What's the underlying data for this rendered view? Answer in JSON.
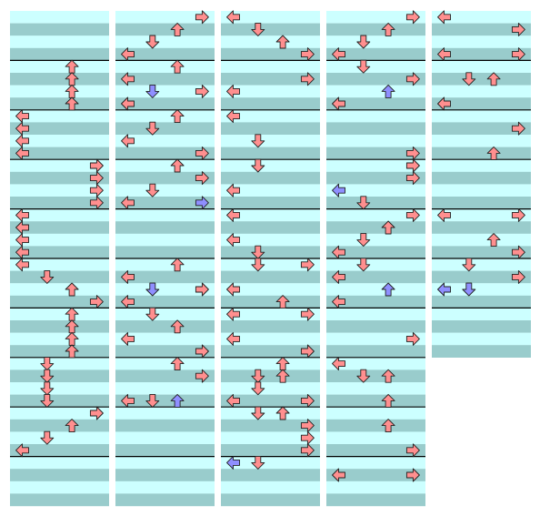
{
  "chart_data": {
    "type": "other",
    "description_kind": "rhythm-step-chart",
    "colors": {
      "row_light": "#ccffff",
      "row_dark": "#99cccc",
      "measure_line": "#000000",
      "arrow_normal": "#ff8f8f",
      "arrow_alt": "#8f8fff",
      "arrow_outline": "#222222"
    },
    "legend": {
      "lanes": [
        "left",
        "down",
        "up",
        "right"
      ],
      "arrow_colors": [
        "normal",
        "alt"
      ]
    },
    "columns": [
      {
        "measures": 10,
        "notes": [
          [
            4,
            "up"
          ],
          [
            5,
            "up"
          ],
          [
            6,
            "up"
          ],
          [
            7,
            "up"
          ],
          [
            8,
            "left"
          ],
          [
            9,
            "left"
          ],
          [
            10,
            "left"
          ],
          [
            11,
            "left"
          ],
          [
            12,
            "right"
          ],
          [
            13,
            "right"
          ],
          [
            14,
            "right"
          ],
          [
            15,
            "right"
          ],
          [
            16,
            "left"
          ],
          [
            17,
            "left"
          ],
          [
            18,
            "left"
          ],
          [
            19,
            "left"
          ],
          [
            20,
            "left"
          ],
          [
            21,
            "down"
          ],
          [
            22,
            "up"
          ],
          [
            23,
            "right"
          ],
          [
            24,
            "up"
          ],
          [
            25,
            "up"
          ],
          [
            26,
            "up"
          ],
          [
            27,
            "up"
          ],
          [
            28,
            "down"
          ],
          [
            29,
            "down"
          ],
          [
            30,
            "down"
          ],
          [
            31,
            "down"
          ],
          [
            32,
            "right"
          ],
          [
            33,
            "up"
          ],
          [
            34,
            "down"
          ],
          [
            35,
            "left"
          ]
        ]
      },
      {
        "measures": 10,
        "notes": [
          [
            0,
            "right"
          ],
          [
            1,
            "up"
          ],
          [
            2,
            "down"
          ],
          [
            3,
            "left"
          ],
          [
            4,
            "up"
          ],
          [
            5,
            "left"
          ],
          [
            6,
            "right"
          ],
          [
            6,
            "down",
            "alt"
          ],
          [
            7,
            "left"
          ],
          [
            8,
            "up"
          ],
          [
            9,
            "down"
          ],
          [
            10,
            "left"
          ],
          [
            11,
            "right"
          ],
          [
            12,
            "up"
          ],
          [
            13,
            "right"
          ],
          [
            14,
            "down"
          ],
          [
            15,
            "right",
            "alt"
          ],
          [
            15,
            "left"
          ],
          [
            20,
            "up"
          ],
          [
            21,
            "left"
          ],
          [
            22,
            "right"
          ],
          [
            22,
            "down",
            "alt"
          ],
          [
            23,
            "left"
          ],
          [
            24,
            "down"
          ],
          [
            25,
            "up"
          ],
          [
            26,
            "left"
          ],
          [
            27,
            "right"
          ],
          [
            28,
            "up"
          ],
          [
            29,
            "right"
          ],
          [
            31,
            "left"
          ],
          [
            31,
            "down"
          ],
          [
            31,
            "up",
            "alt"
          ]
        ]
      },
      {
        "measures": 10,
        "notes": [
          [
            0,
            "left"
          ],
          [
            1,
            "down"
          ],
          [
            2,
            "up"
          ],
          [
            3,
            "right"
          ],
          [
            5,
            "right"
          ],
          [
            6,
            "left"
          ],
          [
            8,
            "left"
          ],
          [
            10,
            "down"
          ],
          [
            12,
            "down"
          ],
          [
            14,
            "left"
          ],
          [
            16,
            "left"
          ],
          [
            18,
            "left"
          ],
          [
            19,
            "down"
          ],
          [
            20,
            "down"
          ],
          [
            20,
            "right"
          ],
          [
            22,
            "left"
          ],
          [
            23,
            "up"
          ],
          [
            24,
            "right"
          ],
          [
            24,
            "left"
          ],
          [
            26,
            "left"
          ],
          [
            27,
            "right"
          ],
          [
            28,
            "up"
          ],
          [
            29,
            "down"
          ],
          [
            29,
            "up"
          ],
          [
            30,
            "down"
          ],
          [
            31,
            "right"
          ],
          [
            31,
            "left"
          ],
          [
            32,
            "down"
          ],
          [
            32,
            "up"
          ],
          [
            33,
            "right"
          ],
          [
            34,
            "right"
          ],
          [
            35,
            "right"
          ],
          [
            36,
            "left",
            "alt"
          ],
          [
            36,
            "down"
          ]
        ]
      },
      {
        "measures": 10,
        "notes": [
          [
            0,
            "right"
          ],
          [
            1,
            "up"
          ],
          [
            2,
            "down"
          ],
          [
            3,
            "left"
          ],
          [
            4,
            "down"
          ],
          [
            5,
            "right"
          ],
          [
            6,
            "up",
            "alt"
          ],
          [
            7,
            "left"
          ],
          [
            11,
            "right"
          ],
          [
            12,
            "right"
          ],
          [
            13,
            "right"
          ],
          [
            14,
            "left",
            "alt"
          ],
          [
            15,
            "down"
          ],
          [
            16,
            "right"
          ],
          [
            17,
            "up"
          ],
          [
            18,
            "down"
          ],
          [
            19,
            "left"
          ],
          [
            20,
            "down"
          ],
          [
            21,
            "left"
          ],
          [
            22,
            "up",
            "alt"
          ],
          [
            23,
            "left"
          ],
          [
            26,
            "right"
          ],
          [
            28,
            "left"
          ],
          [
            29,
            "down"
          ],
          [
            29,
            "up"
          ],
          [
            31,
            "up"
          ],
          [
            33,
            "up"
          ],
          [
            35,
            "right"
          ],
          [
            37,
            "right"
          ],
          [
            37,
            "left"
          ]
        ]
      },
      {
        "measures": 7,
        "notes": [
          [
            0,
            "left"
          ],
          [
            1,
            "right"
          ],
          [
            3,
            "left"
          ],
          [
            3,
            "right"
          ],
          [
            5,
            "down"
          ],
          [
            5,
            "up"
          ],
          [
            7,
            "left"
          ],
          [
            9,
            "right"
          ],
          [
            11,
            "up"
          ],
          [
            16,
            "left"
          ],
          [
            16,
            "right"
          ],
          [
            18,
            "up"
          ],
          [
            19,
            "right"
          ],
          [
            20,
            "down"
          ],
          [
            21,
            "right"
          ],
          [
            22,
            "left",
            "alt"
          ],
          [
            22,
            "down",
            "alt"
          ]
        ]
      }
    ]
  }
}
